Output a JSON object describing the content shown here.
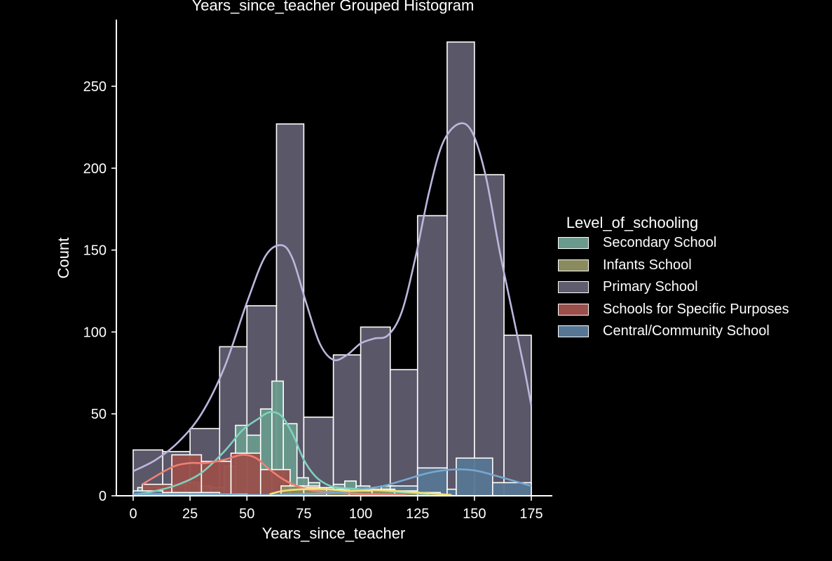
{
  "chart_data": {
    "type": "histogram",
    "title": "Years_since_teacher Grouped Histogram",
    "xlabel": "Years_since_teacher",
    "ylabel": "Count",
    "xlim": [
      -8,
      183
    ],
    "ylim": [
      0,
      290
    ],
    "xticks": [
      0,
      25,
      50,
      75,
      100,
      125,
      150,
      175
    ],
    "yticks": [
      0,
      50,
      100,
      150,
      200,
      250
    ],
    "grid": false,
    "legend": {
      "title": "Level_of_schooling",
      "placement": "right"
    },
    "series": [
      {
        "name": "Primary School",
        "color": "#5f5c6e",
        "kde_color": "#bcb7dd",
        "bins": [
          {
            "x0": 0,
            "x1": 13,
            "count": 28
          },
          {
            "x0": 13,
            "x1": 25,
            "count": 27
          },
          {
            "x0": 25,
            "x1": 38,
            "count": 41
          },
          {
            "x0": 38,
            "x1": 50,
            "count": 91
          },
          {
            "x0": 50,
            "x1": 63,
            "count": 116
          },
          {
            "x0": 63,
            "x1": 75,
            "count": 227
          },
          {
            "x0": 75,
            "x1": 88,
            "count": 48
          },
          {
            "x0": 88,
            "x1": 100,
            "count": 86
          },
          {
            "x0": 100,
            "x1": 113,
            "count": 103
          },
          {
            "x0": 113,
            "x1": 125,
            "count": 77
          },
          {
            "x0": 125,
            "x1": 138,
            "count": 171
          },
          {
            "x0": 138,
            "x1": 150,
            "count": 277
          },
          {
            "x0": 150,
            "x1": 163,
            "count": 196
          },
          {
            "x0": 163,
            "x1": 175,
            "count": 98
          }
        ],
        "kde": [
          [
            0,
            15
          ],
          [
            10,
            22
          ],
          [
            20,
            33
          ],
          [
            30,
            50
          ],
          [
            40,
            78
          ],
          [
            50,
            118
          ],
          [
            58,
            146
          ],
          [
            65,
            153
          ],
          [
            70,
            145
          ],
          [
            76,
            118
          ],
          [
            82,
            93
          ],
          [
            88,
            83
          ],
          [
            94,
            86
          ],
          [
            100,
            93
          ],
          [
            106,
            96
          ],
          [
            112,
            98
          ],
          [
            118,
            112
          ],
          [
            124,
            145
          ],
          [
            130,
            185
          ],
          [
            136,
            215
          ],
          [
            143,
            227
          ],
          [
            149,
            222
          ],
          [
            155,
            195
          ],
          [
            161,
            150
          ],
          [
            167,
            110
          ],
          [
            172,
            77
          ],
          [
            175,
            55
          ]
        ]
      },
      {
        "name": "Secondary School",
        "color": "#6a9a8c",
        "kde_color": "#7fd1bd",
        "bins": [
          {
            "x0": 2,
            "x1": 7,
            "count": 5
          },
          {
            "x0": 7,
            "x1": 12,
            "count": 5
          },
          {
            "x0": 12,
            "x1": 18,
            "count": 3
          },
          {
            "x0": 18,
            "x1": 23,
            "count": 7
          },
          {
            "x0": 23,
            "x1": 29,
            "count": 8
          },
          {
            "x0": 29,
            "x1": 34,
            "count": 6
          },
          {
            "x0": 34,
            "x1": 40,
            "count": 5
          },
          {
            "x0": 40,
            "x1": 45,
            "count": 18
          },
          {
            "x0": 45,
            "x1": 50,
            "count": 43
          },
          {
            "x0": 50,
            "x1": 56,
            "count": 37
          },
          {
            "x0": 56,
            "x1": 61,
            "count": 53
          },
          {
            "x0": 61,
            "x1": 66,
            "count": 70
          },
          {
            "x0": 66,
            "x1": 72,
            "count": 44
          },
          {
            "x0": 72,
            "x1": 77,
            "count": 11
          },
          {
            "x0": 77,
            "x1": 82,
            "count": 8
          },
          {
            "x0": 82,
            "x1": 88,
            "count": 5
          },
          {
            "x0": 88,
            "x1": 93,
            "count": 7
          },
          {
            "x0": 93,
            "x1": 98,
            "count": 9
          },
          {
            "x0": 98,
            "x1": 104,
            "count": 6
          },
          {
            "x0": 104,
            "x1": 109,
            "count": 4
          },
          {
            "x0": 109,
            "x1": 115,
            "count": 6
          }
        ],
        "kde": [
          [
            2,
            1
          ],
          [
            10,
            3
          ],
          [
            20,
            7
          ],
          [
            30,
            14
          ],
          [
            40,
            27
          ],
          [
            48,
            40
          ],
          [
            55,
            47
          ],
          [
            60,
            51
          ],
          [
            65,
            49
          ],
          [
            70,
            38
          ],
          [
            75,
            22
          ],
          [
            80,
            12
          ],
          [
            85,
            7
          ],
          [
            90,
            5
          ],
          [
            100,
            4
          ],
          [
            110,
            3
          ],
          [
            120,
            2
          ],
          [
            130,
            1
          ]
        ]
      },
      {
        "name": "Schools for Specific Purposes",
        "color": "#9a4f4a",
        "kde_color": "#f07f74",
        "bins": [
          {
            "x0": 4,
            "x1": 17,
            "count": 7
          },
          {
            "x0": 17,
            "x1": 30,
            "count": 25
          },
          {
            "x0": 30,
            "x1": 43,
            "count": 21
          },
          {
            "x0": 43,
            "x1": 56,
            "count": 26
          },
          {
            "x0": 56,
            "x1": 69,
            "count": 16
          },
          {
            "x0": 69,
            "x1": 82,
            "count": 6
          },
          {
            "x0": 82,
            "x1": 95,
            "count": 3
          },
          {
            "x0": 95,
            "x1": 108,
            "count": 2
          }
        ],
        "kde": [
          [
            4,
            7
          ],
          [
            10,
            12
          ],
          [
            18,
            18
          ],
          [
            25,
            20
          ],
          [
            32,
            20
          ],
          [
            40,
            22
          ],
          [
            48,
            25
          ],
          [
            54,
            23
          ],
          [
            60,
            16
          ],
          [
            66,
            10
          ],
          [
            72,
            6
          ],
          [
            80,
            3
          ],
          [
            90,
            2
          ],
          [
            100,
            1
          ],
          [
            110,
            1
          ],
          [
            120,
            0.5
          ]
        ]
      },
      {
        "name": "Central/Community School",
        "color": "#577694",
        "kde_color": "#76a7d0",
        "bins": [
          {
            "x0": 0,
            "x1": 13,
            "count": 3
          },
          {
            "x0": 13,
            "x1": 25,
            "count": 2
          },
          {
            "x0": 25,
            "x1": 38,
            "count": 2
          },
          {
            "x0": 38,
            "x1": 50,
            "count": 1
          },
          {
            "x0": 100,
            "x1": 113,
            "count": 3
          },
          {
            "x0": 113,
            "x1": 125,
            "count": 6
          },
          {
            "x0": 125,
            "x1": 138,
            "count": 17
          },
          {
            "x0": 138,
            "x1": 142,
            "count": 4
          },
          {
            "x0": 142,
            "x1": 158,
            "count": 23
          },
          {
            "x0": 158,
            "x1": 175,
            "count": 8
          }
        ],
        "kde": [
          [
            0,
            1
          ],
          [
            30,
            1
          ],
          [
            60,
            0.5
          ],
          [
            90,
            2
          ],
          [
            100,
            4
          ],
          [
            110,
            6
          ],
          [
            120,
            10
          ],
          [
            130,
            14
          ],
          [
            140,
            16
          ],
          [
            150,
            15.5
          ],
          [
            160,
            12
          ],
          [
            170,
            8
          ],
          [
            175,
            6
          ]
        ]
      },
      {
        "name": "Infants School",
        "color": "#8a8b5e",
        "kde_color": "#f1e17a",
        "bins": [
          {
            "x0": 65,
            "x1": 75,
            "count": 6
          },
          {
            "x0": 75,
            "x1": 85,
            "count": 5
          },
          {
            "x0": 85,
            "x1": 95,
            "count": 4
          },
          {
            "x0": 95,
            "x1": 105,
            "count": 3
          },
          {
            "x0": 105,
            "x1": 115,
            "count": 4
          },
          {
            "x0": 115,
            "x1": 125,
            "count": 3
          },
          {
            "x0": 125,
            "x1": 135,
            "count": 2
          }
        ],
        "kde": [
          [
            60,
            1
          ],
          [
            66,
            3
          ],
          [
            75,
            4
          ],
          [
            85,
            4
          ],
          [
            95,
            3
          ],
          [
            105,
            3.5
          ],
          [
            115,
            3
          ],
          [
            125,
            2
          ],
          [
            135,
            1
          ],
          [
            140,
            0.5
          ]
        ]
      }
    ]
  },
  "legend_order": [
    "Secondary School",
    "Infants School",
    "Primary School",
    "Schools for Specific Purposes",
    "Central/Community School"
  ]
}
